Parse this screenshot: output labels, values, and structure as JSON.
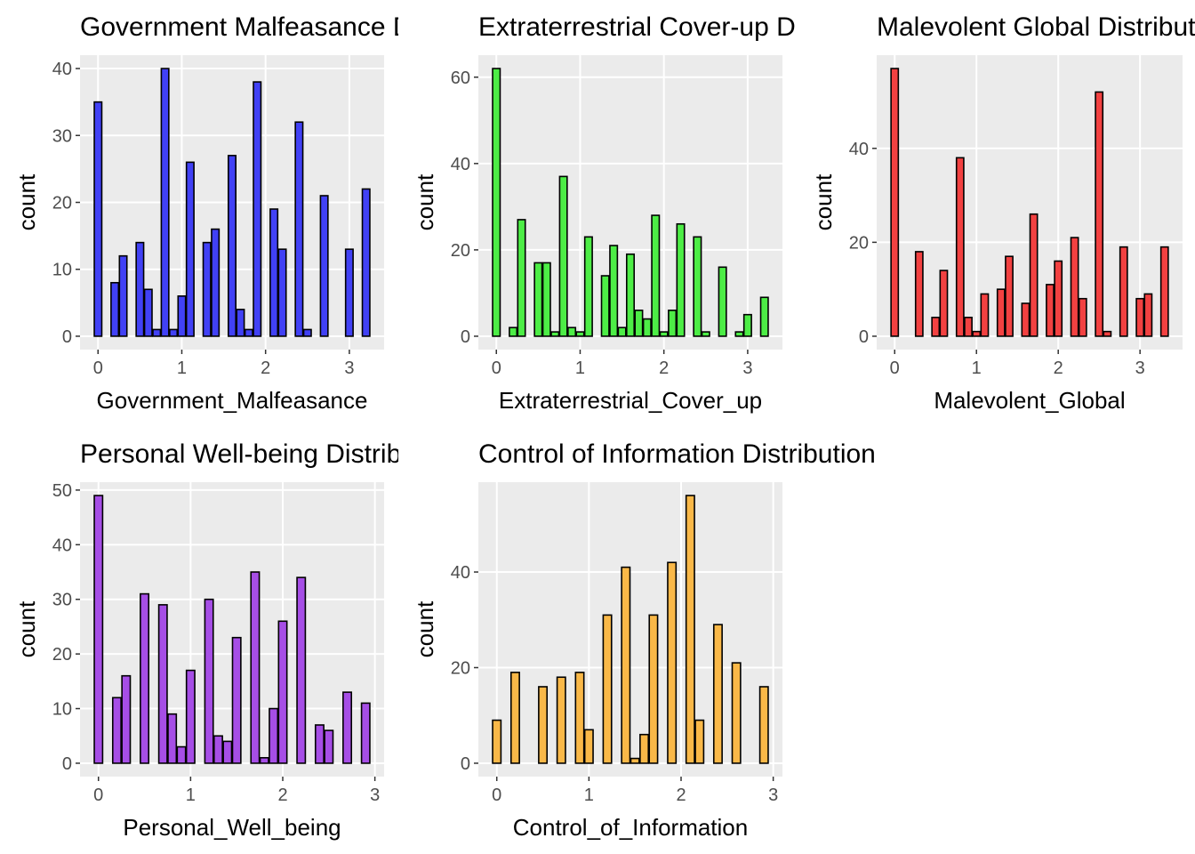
{
  "chart_data": [
    {
      "type": "histogram",
      "title": "Government Malfeasance Distribution",
      "xlabel": "Government_Malfeasance",
      "ylabel": "count",
      "bins": [
        -0.05,
        0.05,
        0.15,
        0.25,
        0.35,
        0.45,
        0.55,
        0.65,
        0.75,
        0.85,
        0.95,
        1.05,
        1.15,
        1.25,
        1.35,
        1.45,
        1.55,
        1.65,
        1.75,
        1.85,
        1.95,
        2.05,
        2.15,
        2.25,
        2.35,
        2.45,
        2.55,
        2.65,
        2.75,
        2.85,
        2.95,
        3.05,
        3.15,
        3.25
      ],
      "counts": [
        35,
        0,
        8,
        12,
        0,
        14,
        7,
        1,
        40,
        1,
        6,
        26,
        0,
        14,
        16,
        0,
        27,
        4,
        1,
        38,
        0,
        19,
        13,
        0,
        32,
        1,
        0,
        21,
        0,
        0,
        13,
        0,
        22
      ],
      "color": "#4141f5",
      "xlim": [
        -0.215,
        3.415
      ],
      "ylim": [
        -2,
        42
      ],
      "xticks": [
        0,
        1,
        2,
        3
      ],
      "yticks": [
        0,
        10,
        20,
        30,
        40
      ],
      "grid": true
    },
    {
      "type": "histogram",
      "title": "Extraterrestrial Cover-up Distribution",
      "xlabel": "Extraterrestrial_Cover_up",
      "ylabel": "count",
      "bins": [
        -0.05,
        0.05,
        0.15,
        0.25,
        0.35,
        0.45,
        0.55,
        0.65,
        0.75,
        0.85,
        0.95,
        1.05,
        1.15,
        1.25,
        1.35,
        1.45,
        1.55,
        1.65,
        1.75,
        1.85,
        1.95,
        2.05,
        2.15,
        2.25,
        2.35,
        2.45,
        2.55,
        2.65,
        2.75,
        2.85,
        2.95,
        3.05,
        3.15,
        3.25
      ],
      "counts": [
        62,
        0,
        2,
        27,
        0,
        17,
        17,
        1,
        37,
        2,
        1,
        23,
        0,
        14,
        21,
        2,
        19,
        6,
        4,
        28,
        1,
        6,
        26,
        0,
        23,
        1,
        0,
        16,
        0,
        1,
        5,
        0,
        9
      ],
      "color": "#4ded46",
      "xlim": [
        -0.215,
        3.415
      ],
      "ylim": [
        -3.1,
        65.1
      ],
      "xticks": [
        0,
        1,
        2,
        3
      ],
      "yticks": [
        0,
        20,
        40,
        60
      ],
      "grid": true
    },
    {
      "type": "histogram",
      "title": "Malevolent Global Distribution",
      "xlabel": "Malevolent_Global",
      "ylabel": "count",
      "bins": [
        -0.05,
        0.05,
        0.15,
        0.25,
        0.35,
        0.45,
        0.55,
        0.65,
        0.75,
        0.85,
        0.95,
        1.05,
        1.15,
        1.25,
        1.35,
        1.45,
        1.55,
        1.65,
        1.75,
        1.85,
        1.95,
        2.05,
        2.15,
        2.25,
        2.35,
        2.45,
        2.55,
        2.65,
        2.75,
        2.85,
        2.95,
        3.05,
        3.15,
        3.25,
        3.35
      ],
      "counts": [
        57,
        0,
        0,
        18,
        0,
        4,
        14,
        0,
        38,
        4,
        1,
        9,
        0,
        10,
        17,
        0,
        7,
        26,
        0,
        11,
        16,
        0,
        21,
        8,
        0,
        52,
        1,
        0,
        19,
        0,
        8,
        9,
        0,
        19
      ],
      "color": "#f24141",
      "xlim": [
        -0.22,
        3.52
      ],
      "ylim": [
        -2.85,
        59.85
      ],
      "xticks": [
        0,
        1,
        2,
        3
      ],
      "yticks": [
        0,
        20,
        40
      ],
      "grid": true
    },
    {
      "type": "histogram",
      "title": "Personal Well-being Distribution",
      "xlabel": "Personal_Well_being",
      "ylabel": "count",
      "bins": [
        -0.05,
        0.05,
        0.15,
        0.25,
        0.35,
        0.45,
        0.55,
        0.65,
        0.75,
        0.85,
        0.95,
        1.05,
        1.15,
        1.25,
        1.35,
        1.45,
        1.55,
        1.65,
        1.75,
        1.85,
        1.95,
        2.05,
        2.15,
        2.25,
        2.35,
        2.45,
        2.55,
        2.65,
        2.75,
        2.85,
        2.95
      ],
      "counts": [
        49,
        0,
        12,
        16,
        0,
        31,
        0,
        29,
        9,
        3,
        17,
        0,
        30,
        5,
        4,
        23,
        0,
        35,
        1,
        10,
        26,
        0,
        34,
        0,
        7,
        6,
        0,
        13,
        0,
        11
      ],
      "color": "#a64ee6",
      "xlim": [
        -0.2,
        3.1
      ],
      "ylim": [
        -2.45,
        51.45
      ],
      "xticks": [
        0,
        1,
        2,
        3
      ],
      "yticks": [
        0,
        10,
        20,
        30,
        40,
        50
      ],
      "grid": true
    },
    {
      "type": "histogram",
      "title": "Control of Information Distribution",
      "xlabel": "Control_of_Information",
      "ylabel": "count",
      "bins": [
        -0.05,
        0.05,
        0.15,
        0.25,
        0.35,
        0.45,
        0.55,
        0.65,
        0.75,
        0.85,
        0.95,
        1.05,
        1.15,
        1.25,
        1.35,
        1.45,
        1.55,
        1.65,
        1.75,
        1.85,
        1.95,
        2.05,
        2.15,
        2.25,
        2.35,
        2.45,
        2.55,
        2.65,
        2.75,
        2.85,
        2.95
      ],
      "counts": [
        9,
        0,
        19,
        0,
        0,
        16,
        0,
        18,
        0,
        19,
        7,
        0,
        31,
        0,
        41,
        1,
        6,
        31,
        0,
        42,
        0,
        56,
        9,
        0,
        29,
        0,
        21,
        0,
        0,
        16
      ],
      "color": "#f9b848",
      "xlim": [
        -0.2,
        3.1
      ],
      "ylim": [
        -2.8,
        58.8
      ],
      "xticks": [
        0,
        1,
        2,
        3
      ],
      "yticks": [
        0,
        20,
        40
      ],
      "grid": true
    }
  ]
}
